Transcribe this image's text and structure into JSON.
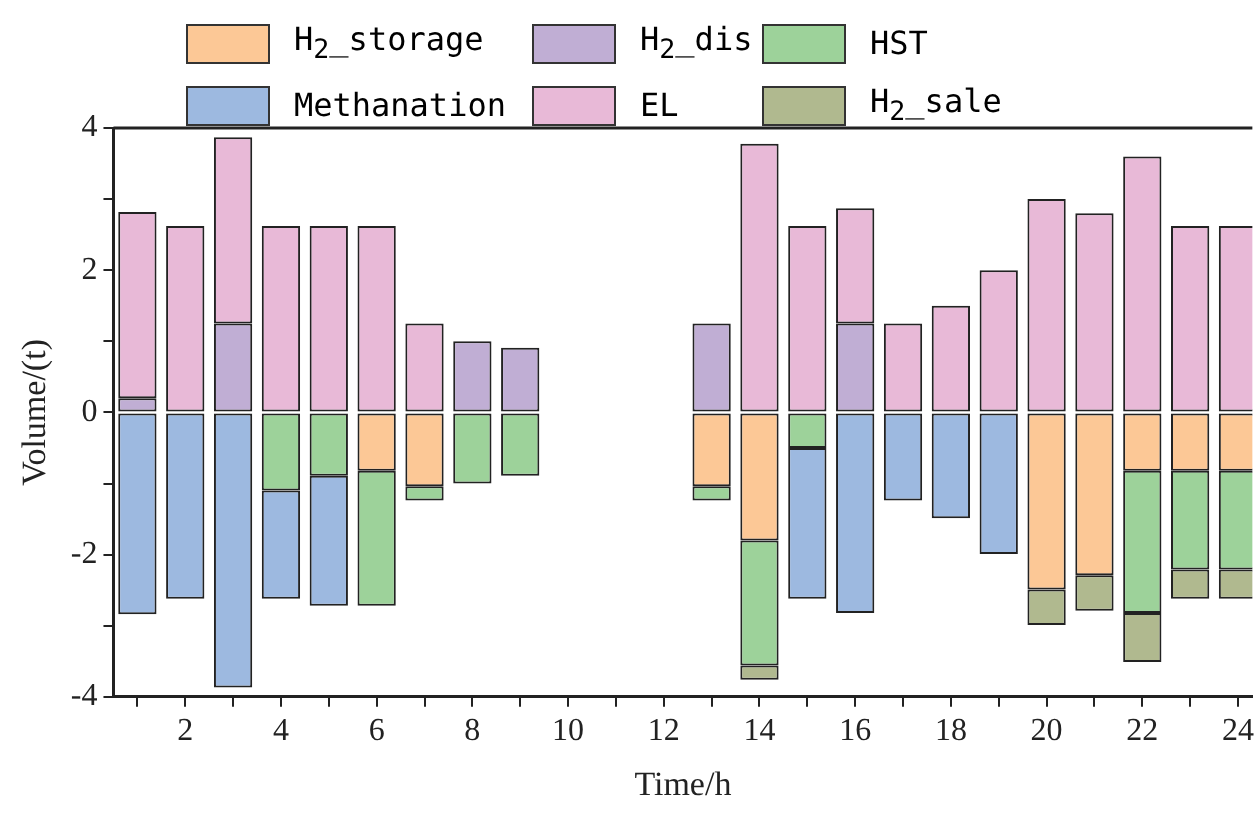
{
  "chart_data": {
    "type": "bar",
    "stacked": true,
    "xlabel": "Time/h",
    "ylabel": "Volume/(t)",
    "x": [
      1,
      2,
      3,
      4,
      5,
      6,
      7,
      8,
      9,
      10,
      11,
      12,
      13,
      14,
      15,
      16,
      17,
      18,
      19,
      20,
      21,
      22,
      23,
      24
    ],
    "xlim": [
      0.5,
      24.3
    ],
    "xticks": [
      {
        "value": 1,
        "label": null
      },
      2,
      {
        "value": 3,
        "label": null
      },
      4,
      {
        "value": 5,
        "label": null
      },
      6,
      {
        "value": 7,
        "label": null
      },
      8,
      {
        "value": 9,
        "label": null
      },
      10,
      {
        "value": 11,
        "label": null
      },
      12,
      {
        "value": 13,
        "label": null
      },
      14,
      {
        "value": 15,
        "label": null
      },
      16,
      {
        "value": 17,
        "label": null
      },
      18,
      {
        "value": 19,
        "label": null
      },
      20,
      {
        "value": 21,
        "label": null
      },
      22,
      {
        "value": 23,
        "label": null
      },
      24
    ],
    "ylim": [
      -4,
      4
    ],
    "yticks": [
      -4,
      {
        "value": -3,
        "label": null
      },
      -2,
      {
        "value": -1,
        "label": null
      },
      0,
      {
        "value": 1,
        "label": null
      },
      2,
      {
        "value": 3,
        "label": null
      },
      4
    ],
    "grid": false,
    "legend": "top",
    "series": [
      {
        "name": "H$_{2}$_storage",
        "color": "#fcc896",
        "values": [
          null,
          null,
          null,
          null,
          null,
          -0.82,
          -1.04,
          null,
          null,
          null,
          null,
          null,
          -1.04,
          -1.8,
          null,
          null,
          null,
          null,
          null,
          -2.49,
          -2.29,
          -0.82,
          -0.82,
          -0.82
        ]
      },
      {
        "name": "H$_{2}$_dis",
        "color": "#c0aed4",
        "values": [
          0.2,
          null,
          1.25,
          null,
          null,
          null,
          null,
          1.0,
          0.91,
          null,
          null,
          null,
          1.25,
          null,
          null,
          1.25,
          null,
          null,
          null,
          null,
          null,
          null,
          null,
          null
        ]
      },
      {
        "name": "HST",
        "color": "#9dd29a",
        "values": [
          null,
          null,
          null,
          -1.1,
          -0.89,
          -1.9,
          -0.2,
          -1.0,
          -0.89,
          null,
          null,
          null,
          -0.2,
          -1.76,
          -0.5,
          null,
          null,
          null,
          null,
          null,
          null,
          -2.0,
          -1.39,
          -1.39
        ]
      },
      {
        "name": "Methanation",
        "color": "#9db9e0",
        "values": [
          -2.84,
          -2.62,
          -3.87,
          -1.52,
          -1.83,
          null,
          null,
          null,
          null,
          null,
          null,
          null,
          null,
          null,
          -2.12,
          -2.82,
          -1.24,
          -1.49,
          -1.99,
          null,
          null,
          null,
          null,
          null
        ]
      },
      {
        "name": "EL",
        "color": "#e8b9d7",
        "values": [
          2.62,
          2.62,
          2.62,
          2.62,
          2.62,
          2.62,
          1.25,
          null,
          null,
          null,
          null,
          null,
          null,
          3.78,
          2.62,
          1.62,
          1.25,
          1.5,
          2.0,
          3.0,
          2.8,
          3.6,
          2.62,
          2.62
        ]
      },
      {
        "name": "H$_{2}$_sale",
        "color": "#b0b98f",
        "values": [
          null,
          null,
          null,
          null,
          null,
          null,
          null,
          null,
          null,
          null,
          null,
          null,
          null,
          -0.2,
          null,
          null,
          null,
          null,
          null,
          -0.5,
          -0.5,
          -0.69,
          -0.41,
          -0.41
        ]
      }
    ]
  }
}
